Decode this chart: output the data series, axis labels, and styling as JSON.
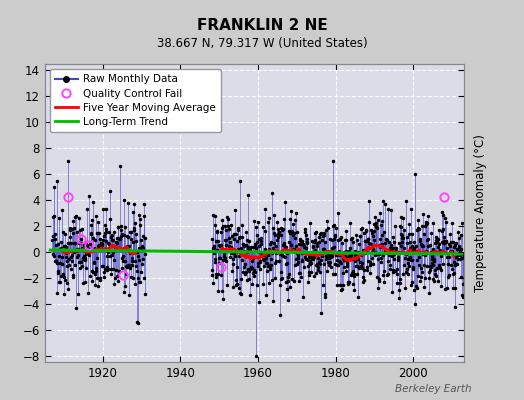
{
  "title": "FRANKLIN 2 NE",
  "subtitle": "38.667 N, 79.317 W (United States)",
  "ylabel": "Temperature Anomaly (°C)",
  "watermark": "Berkeley Earth",
  "ylim": [
    -8.5,
    14.5
  ],
  "yticks": [
    -8,
    -6,
    -4,
    -2,
    0,
    2,
    4,
    6,
    8,
    10,
    12,
    14
  ],
  "xlim": [
    1905,
    2013
  ],
  "xticks": [
    1920,
    1940,
    1960,
    1980,
    2000
  ],
  "fig_bg_color": "#cccccc",
  "plot_bg_color": "#dcdce8",
  "grid_color": "#ffffff",
  "raw_line_color": "#4444cc",
  "raw_dot_color": "#000000",
  "ma_color": "#ff0000",
  "trend_color": "#00bb00",
  "qc_color": "#ff44ff",
  "seed": 42,
  "period1_start": 1907,
  "period1_end": 1930,
  "period2_start": 1948,
  "period2_end": 2012,
  "gap_start": 1930,
  "gap_end": 1948
}
